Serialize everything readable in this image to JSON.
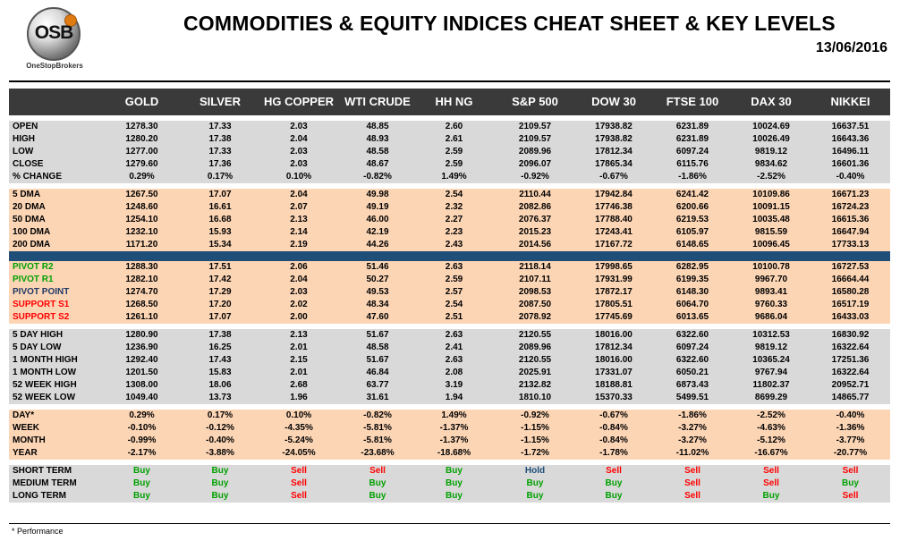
{
  "logo": {
    "text": "OSB",
    "subtitle": "OneStopBrokers"
  },
  "title": "COMMODITIES & EQUITY INDICES CHEAT SHEET & KEY LEVELS",
  "date": "13/06/2016",
  "columns": [
    "GOLD",
    "SILVER",
    "HG COPPER",
    "WTI CRUDE",
    "HH NG",
    "S&P 500",
    "DOW 30",
    "FTSE 100",
    "DAX 30",
    "NIKKEI"
  ],
  "sections": [
    {
      "style": "g",
      "rows": [
        {
          "label": "OPEN",
          "values": [
            "1278.30",
            "17.33",
            "2.03",
            "48.85",
            "2.60",
            "2109.57",
            "17938.82",
            "6231.89",
            "10024.69",
            "16637.51"
          ]
        },
        {
          "label": "HIGH",
          "values": [
            "1280.20",
            "17.38",
            "2.04",
            "48.93",
            "2.61",
            "2109.57",
            "17938.82",
            "6231.89",
            "10026.49",
            "16643.36"
          ]
        },
        {
          "label": "LOW",
          "values": [
            "1277.00",
            "17.33",
            "2.03",
            "48.58",
            "2.59",
            "2089.96",
            "17812.34",
            "6097.24",
            "9819.12",
            "16496.11"
          ]
        },
        {
          "label": "CLOSE",
          "values": [
            "1279.60",
            "17.36",
            "2.03",
            "48.67",
            "2.59",
            "2096.07",
            "17865.34",
            "6115.76",
            "9834.62",
            "16601.36"
          ]
        },
        {
          "label": "% CHANGE",
          "values": [
            "0.29%",
            "0.17%",
            "0.10%",
            "-0.82%",
            "1.49%",
            "-0.92%",
            "-0.67%",
            "-1.86%",
            "-2.52%",
            "-0.40%"
          ]
        }
      ]
    },
    {
      "style": "o",
      "rows": [
        {
          "label": "5 DMA",
          "values": [
            "1267.50",
            "17.07",
            "2.04",
            "49.98",
            "2.54",
            "2110.44",
            "17942.84",
            "6241.42",
            "10109.86",
            "16671.23"
          ]
        },
        {
          "label": "20 DMA",
          "values": [
            "1248.60",
            "16.61",
            "2.07",
            "49.19",
            "2.32",
            "2082.86",
            "17746.38",
            "6200.66",
            "10091.15",
            "16724.23"
          ]
        },
        {
          "label": "50 DMA",
          "values": [
            "1254.10",
            "16.68",
            "2.13",
            "46.00",
            "2.27",
            "2076.37",
            "17788.40",
            "6219.53",
            "10035.48",
            "16615.36"
          ]
        },
        {
          "label": "100 DMA",
          "values": [
            "1232.10",
            "15.93",
            "2.14",
            "42.19",
            "2.23",
            "2015.23",
            "17243.41",
            "6105.97",
            "9815.59",
            "16647.94"
          ]
        },
        {
          "label": "200 DMA",
          "values": [
            "1171.20",
            "15.34",
            "2.19",
            "44.26",
            "2.43",
            "2014.56",
            "17167.72",
            "6148.65",
            "10096.45",
            "17733.13"
          ]
        }
      ]
    },
    {
      "style": "o",
      "blueSepBefore": true,
      "rows": [
        {
          "label": "PIVOT R2",
          "labelColor": "green",
          "values": [
            "1288.30",
            "17.51",
            "2.06",
            "51.46",
            "2.63",
            "2118.14",
            "17998.65",
            "6282.95",
            "10100.78",
            "16727.53"
          ]
        },
        {
          "label": "PIVOT R1",
          "labelColor": "green",
          "values": [
            "1282.10",
            "17.42",
            "2.04",
            "50.27",
            "2.59",
            "2107.11",
            "17931.99",
            "6199.35",
            "9967.70",
            "16664.44"
          ]
        },
        {
          "label": "PIVOT POINT",
          "labelColor": "navy",
          "values": [
            "1274.70",
            "17.29",
            "2.03",
            "49.53",
            "2.57",
            "2098.53",
            "17872.17",
            "6148.30",
            "9893.41",
            "16580.28"
          ]
        },
        {
          "label": "SUPPORT  S1",
          "labelColor": "red",
          "values": [
            "1268.50",
            "17.20",
            "2.02",
            "48.34",
            "2.54",
            "2087.50",
            "17805.51",
            "6064.70",
            "9760.33",
            "16517.19"
          ]
        },
        {
          "label": "SUPPORT  S2",
          "labelColor": "red",
          "values": [
            "1261.10",
            "17.07",
            "2.00",
            "47.60",
            "2.51",
            "2078.92",
            "17745.69",
            "6013.65",
            "9686.04",
            "16433.03"
          ]
        }
      ]
    },
    {
      "style": "g",
      "rows": [
        {
          "label": "5 DAY HIGH",
          "values": [
            "1280.90",
            "17.38",
            "2.13",
            "51.67",
            "2.63",
            "2120.55",
            "18016.00",
            "6322.60",
            "10312.53",
            "16830.92"
          ]
        },
        {
          "label": "5 DAY LOW",
          "values": [
            "1236.90",
            "16.25",
            "2.01",
            "48.58",
            "2.41",
            "2089.96",
            "17812.34",
            "6097.24",
            "9819.12",
            "16322.64"
          ]
        },
        {
          "label": "1 MONTH HIGH",
          "values": [
            "1292.40",
            "17.43",
            "2.15",
            "51.67",
            "2.63",
            "2120.55",
            "18016.00",
            "6322.60",
            "10365.24",
            "17251.36"
          ]
        },
        {
          "label": "1 MONTH LOW",
          "values": [
            "1201.50",
            "15.83",
            "2.01",
            "46.84",
            "2.08",
            "2025.91",
            "17331.07",
            "6050.21",
            "9767.94",
            "16322.64"
          ]
        },
        {
          "label": "52 WEEK HIGH",
          "values": [
            "1308.00",
            "18.06",
            "2.68",
            "63.77",
            "3.19",
            "2132.82",
            "18188.81",
            "6873.43",
            "11802.37",
            "20952.71"
          ]
        },
        {
          "label": "52 WEEK LOW",
          "values": [
            "1049.40",
            "13.73",
            "1.96",
            "31.61",
            "1.94",
            "1810.10",
            "15370.33",
            "5499.51",
            "8699.29",
            "14865.77"
          ]
        }
      ]
    },
    {
      "style": "o",
      "rows": [
        {
          "label": "DAY*",
          "values": [
            "0.29%",
            "0.17%",
            "0.10%",
            "-0.82%",
            "1.49%",
            "-0.92%",
            "-0.67%",
            "-1.86%",
            "-2.52%",
            "-0.40%"
          ]
        },
        {
          "label": "WEEK",
          "values": [
            "-0.10%",
            "-0.12%",
            "-4.35%",
            "-5.81%",
            "-1.37%",
            "-1.15%",
            "-0.84%",
            "-3.27%",
            "-4.63%",
            "-1.36%"
          ]
        },
        {
          "label": "MONTH",
          "values": [
            "-0.99%",
            "-0.40%",
            "-5.24%",
            "-5.81%",
            "-1.37%",
            "-1.15%",
            "-0.84%",
            "-3.27%",
            "-5.12%",
            "-3.77%"
          ]
        },
        {
          "label": "YEAR",
          "values": [
            "-2.17%",
            "-3.88%",
            "-24.05%",
            "-23.68%",
            "-18.68%",
            "-1.72%",
            "-1.78%",
            "-11.02%",
            "-16.67%",
            "-20.77%"
          ]
        }
      ]
    },
    {
      "style": "g",
      "signals": true,
      "rows": [
        {
          "label": "SHORT TERM",
          "values": [
            "Buy",
            "Buy",
            "Sell",
            "Sell",
            "Buy",
            "Hold",
            "Sell",
            "Sell",
            "Sell",
            "Sell"
          ]
        },
        {
          "label": "MEDIUM TERM",
          "values": [
            "Buy",
            "Buy",
            "Sell",
            "Buy",
            "Buy",
            "Buy",
            "Buy",
            "Sell",
            "Sell",
            "Buy"
          ]
        },
        {
          "label": "LONG TERM",
          "values": [
            "Buy",
            "Buy",
            "Sell",
            "Buy",
            "Buy",
            "Buy",
            "Buy",
            "Sell",
            "Buy",
            "Sell"
          ]
        }
      ]
    }
  ],
  "footnote": "* Performance"
}
